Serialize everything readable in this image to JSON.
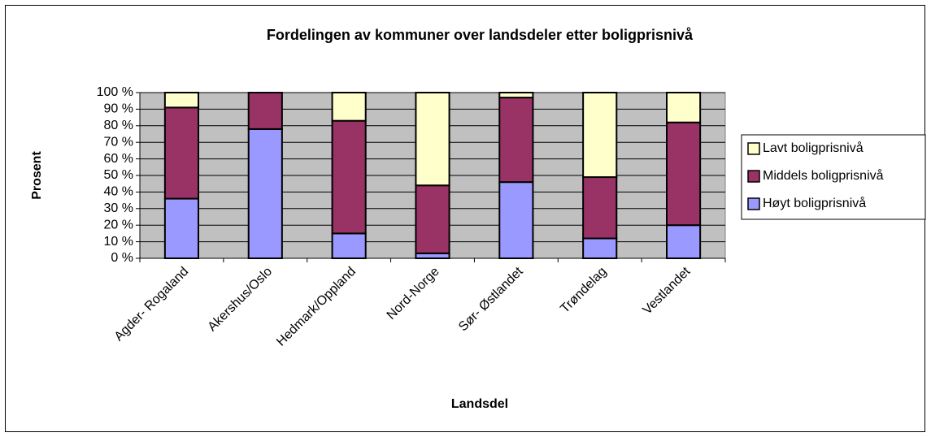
{
  "chart_data": {
    "type": "bar",
    "stacked": true,
    "title": "Fordelingen av kommuner over landsdeler etter boligprisnivå",
    "xlabel": "Landsdel",
    "ylabel": "Prosent",
    "categories": [
      "Agder- Rogaland",
      "Akershus/Oslo",
      "Hedmark/Oppland",
      "Nord-Norge",
      "Sør- Østlandet",
      "Trøndelag",
      "Vestlandet"
    ],
    "series": [
      {
        "name": "Høyt boligprisnivå",
        "color": "#9999ff",
        "values": [
          36,
          78,
          15,
          3,
          46,
          12,
          20
        ]
      },
      {
        "name": "Middels boligprisnivå",
        "color": "#993366",
        "values": [
          55,
          22,
          68,
          41,
          51,
          37,
          62
        ]
      },
      {
        "name": "Lavt boligprisnivå",
        "color": "#ffffcc",
        "values": [
          9,
          0,
          17,
          56,
          3,
          51,
          18
        ]
      }
    ],
    "ylim": [
      0,
      100
    ],
    "yticks": [
      {
        "value": 0,
        "label": "0 %"
      },
      {
        "value": 10,
        "label": "10 %"
      },
      {
        "value": 20,
        "label": "20 %"
      },
      {
        "value": 30,
        "label": "30 %"
      },
      {
        "value": 40,
        "label": "40 %"
      },
      {
        "value": 50,
        "label": "50 %"
      },
      {
        "value": 60,
        "label": "60 %"
      },
      {
        "value": 70,
        "label": "70 %"
      },
      {
        "value": 80,
        "label": "80 %"
      },
      {
        "value": 90,
        "label": "90 %"
      },
      {
        "value": 100,
        "label": "100 %"
      }
    ],
    "grid": true,
    "legend": "right",
    "plot_background": "#c0c0c0"
  }
}
